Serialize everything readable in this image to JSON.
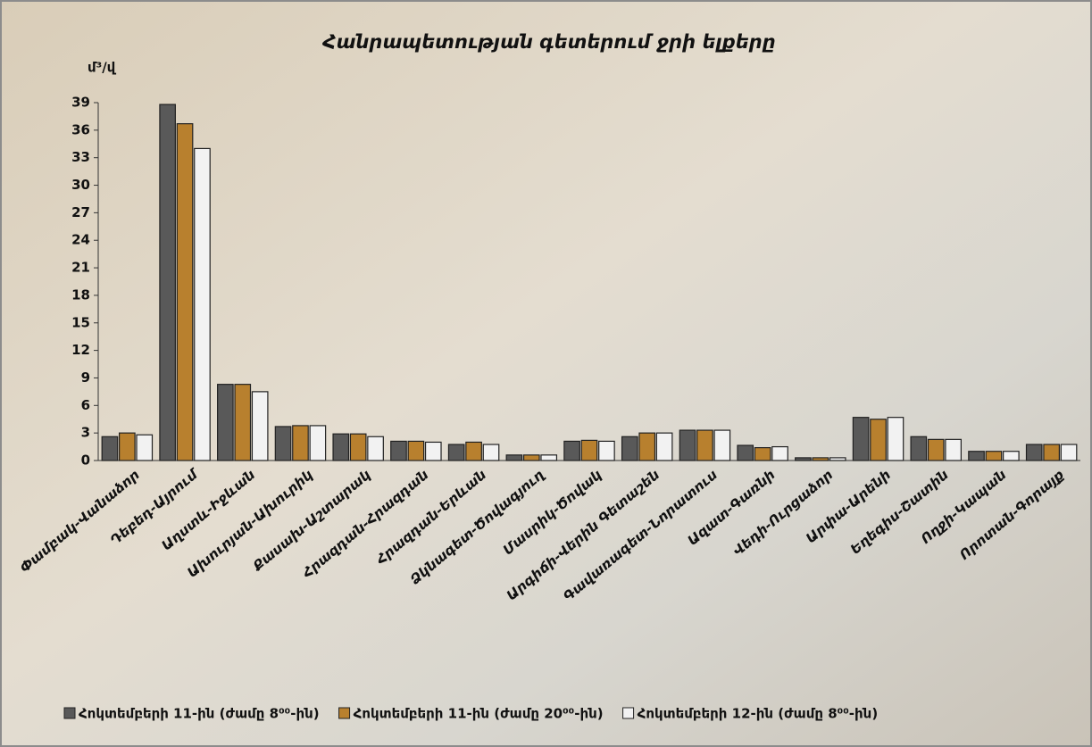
{
  "chart_data": {
    "type": "bar",
    "title": "Հանրապետության գետերում ջրի ելքերը",
    "y_label": "մ³/վ",
    "categories": [
      "Փամբակ-Վանաձոր",
      "Դեբեդ-Այրում",
      "Աղստև-Իջևան",
      "Ախուրյան-Ախուրիկ",
      "Քասախ-Աշտարակ",
      "Հրազդան-Հրազդան",
      "Հրազդան-Երևան",
      "Ձկնագետ-Ծովագյուղ",
      "Մասրիկ-Ծովակ",
      "Արգիճի-Վերին Գետաշեն",
      "Գավառագետ-Նորատուս",
      "Ազատ-Գառնի",
      "Վեդի-Ուրցաձոր",
      "Արփա-Արենի",
      "Եղեգիս-Շատին",
      "Ողջի-Կապան",
      "Որոտան-Գորայք"
    ],
    "series": [
      {
        "name": "Հոկտեմբերի 11-ին (ժամը 8⁰⁰-ին)",
        "color": "#595959",
        "values": [
          2.6,
          38.8,
          8.3,
          3.7,
          2.9,
          2.1,
          1.75,
          0.6,
          2.1,
          2.6,
          3.3,
          1.65,
          0.3,
          4.7,
          2.6,
          1.0,
          1.75
        ]
      },
      {
        "name": "Հոկտեմբերի 11-ին (ժամը 20⁰⁰-ին)",
        "color": "#b8802e",
        "values": [
          3.0,
          36.7,
          8.3,
          3.8,
          2.9,
          2.1,
          2.0,
          0.6,
          2.2,
          3.0,
          3.3,
          1.4,
          0.3,
          4.5,
          2.3,
          1.0,
          1.75
        ]
      },
      {
        "name": "Հոկտեմբերի 12-ին (ժամը 8⁰⁰-ին)",
        "color": "#f2f2f2",
        "values": [
          2.8,
          34.0,
          7.5,
          3.8,
          2.6,
          2.0,
          1.75,
          0.6,
          2.1,
          3.0,
          3.3,
          1.5,
          0.3,
          4.7,
          2.3,
          1.0,
          1.75
        ]
      }
    ],
    "ylim": [
      0,
      39
    ],
    "yticks": [
      0,
      3,
      6,
      9,
      12,
      15,
      18,
      21,
      24,
      27,
      30,
      33,
      36,
      39
    ],
    "grid": false
  }
}
